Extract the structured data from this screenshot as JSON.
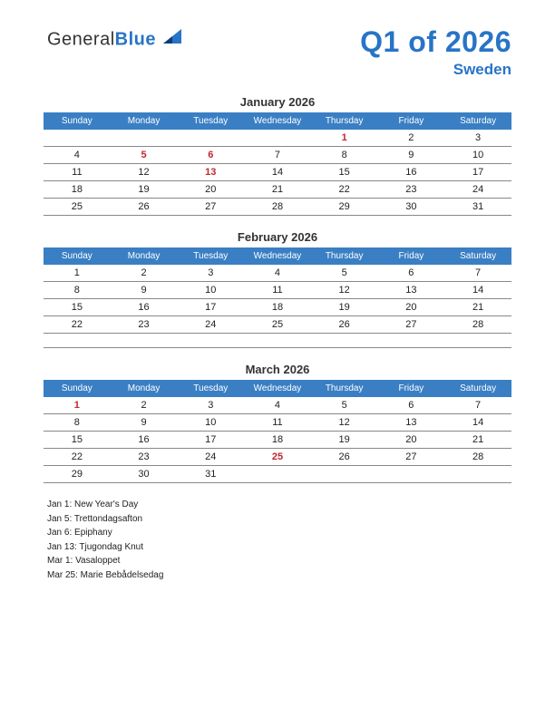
{
  "colors": {
    "brand_blue": "#2874c6",
    "header_bg": "#3a7fc4",
    "holiday_red": "#c1272d",
    "text": "#222222",
    "border": "#888888",
    "bg": "#ffffff"
  },
  "logo": {
    "text_general": "General",
    "text_blue": "Blue"
  },
  "title": "Q1 of 2026",
  "subtitle": "Sweden",
  "weekdays": [
    "Sunday",
    "Monday",
    "Tuesday",
    "Wednesday",
    "Thursday",
    "Friday",
    "Saturday"
  ],
  "months": [
    {
      "name": "January 2026",
      "weeks": [
        [
          {
            "d": ""
          },
          {
            "d": ""
          },
          {
            "d": ""
          },
          {
            "d": ""
          },
          {
            "d": "1",
            "h": true
          },
          {
            "d": "2"
          },
          {
            "d": "3"
          }
        ],
        [
          {
            "d": "4"
          },
          {
            "d": "5",
            "h": true
          },
          {
            "d": "6",
            "h": true
          },
          {
            "d": "7"
          },
          {
            "d": "8"
          },
          {
            "d": "9"
          },
          {
            "d": "10"
          }
        ],
        [
          {
            "d": "11"
          },
          {
            "d": "12"
          },
          {
            "d": "13",
            "h": true
          },
          {
            "d": "14"
          },
          {
            "d": "15"
          },
          {
            "d": "16"
          },
          {
            "d": "17"
          }
        ],
        [
          {
            "d": "18"
          },
          {
            "d": "19"
          },
          {
            "d": "20"
          },
          {
            "d": "21"
          },
          {
            "d": "22"
          },
          {
            "d": "23"
          },
          {
            "d": "24"
          }
        ],
        [
          {
            "d": "25"
          },
          {
            "d": "26"
          },
          {
            "d": "27"
          },
          {
            "d": "28"
          },
          {
            "d": "29"
          },
          {
            "d": "30"
          },
          {
            "d": "31"
          }
        ]
      ],
      "spacer_rows": 0
    },
    {
      "name": "February 2026",
      "weeks": [
        [
          {
            "d": "1"
          },
          {
            "d": "2"
          },
          {
            "d": "3"
          },
          {
            "d": "4"
          },
          {
            "d": "5"
          },
          {
            "d": "6"
          },
          {
            "d": "7"
          }
        ],
        [
          {
            "d": "8"
          },
          {
            "d": "9"
          },
          {
            "d": "10"
          },
          {
            "d": "11"
          },
          {
            "d": "12"
          },
          {
            "d": "13"
          },
          {
            "d": "14"
          }
        ],
        [
          {
            "d": "15"
          },
          {
            "d": "16"
          },
          {
            "d": "17"
          },
          {
            "d": "18"
          },
          {
            "d": "19"
          },
          {
            "d": "20"
          },
          {
            "d": "21"
          }
        ],
        [
          {
            "d": "22"
          },
          {
            "d": "23"
          },
          {
            "d": "24"
          },
          {
            "d": "25"
          },
          {
            "d": "26"
          },
          {
            "d": "27"
          },
          {
            "d": "28"
          }
        ]
      ],
      "spacer_rows": 1
    },
    {
      "name": "March 2026",
      "weeks": [
        [
          {
            "d": "1",
            "h": true
          },
          {
            "d": "2"
          },
          {
            "d": "3"
          },
          {
            "d": "4"
          },
          {
            "d": "5"
          },
          {
            "d": "6"
          },
          {
            "d": "7"
          }
        ],
        [
          {
            "d": "8"
          },
          {
            "d": "9"
          },
          {
            "d": "10"
          },
          {
            "d": "11"
          },
          {
            "d": "12"
          },
          {
            "d": "13"
          },
          {
            "d": "14"
          }
        ],
        [
          {
            "d": "15"
          },
          {
            "d": "16"
          },
          {
            "d": "17"
          },
          {
            "d": "18"
          },
          {
            "d": "19"
          },
          {
            "d": "20"
          },
          {
            "d": "21"
          }
        ],
        [
          {
            "d": "22"
          },
          {
            "d": "23"
          },
          {
            "d": "24"
          },
          {
            "d": "25",
            "h": true
          },
          {
            "d": "26"
          },
          {
            "d": "27"
          },
          {
            "d": "28"
          }
        ],
        [
          {
            "d": "29"
          },
          {
            "d": "30"
          },
          {
            "d": "31"
          },
          {
            "d": ""
          },
          {
            "d": ""
          },
          {
            "d": ""
          },
          {
            "d": ""
          }
        ]
      ],
      "spacer_rows": 0
    }
  ],
  "holidays_list": [
    "Jan 1: New Year's Day",
    "Jan 5: Trettondagsafton",
    "Jan 6: Epiphany",
    "Jan 13: Tjugondag Knut",
    "Mar 1: Vasaloppet",
    "Mar 25: Marie Bebådelsedag"
  ]
}
